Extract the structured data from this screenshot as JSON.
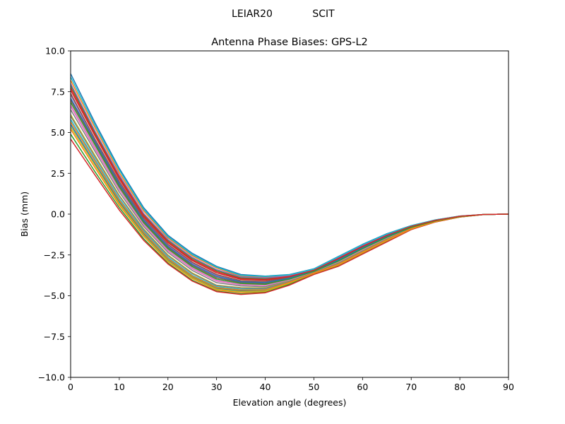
{
  "figure": {
    "suptitle_left": "LEIAR20",
    "suptitle_right": "SCIT"
  },
  "chart_data": {
    "type": "line",
    "title": "Antenna Phase Biases: GPS-L2",
    "xlabel": "Elevation angle (degrees)",
    "ylabel": "Bias (mm)",
    "xlim": [
      0,
      90
    ],
    "ylim": [
      -10,
      10
    ],
    "xticks": [
      0,
      10,
      20,
      30,
      40,
      50,
      60,
      70,
      80,
      90
    ],
    "xtick_labels": [
      "0",
      "10",
      "20",
      "30",
      "40",
      "50",
      "60",
      "70",
      "80",
      "90"
    ],
    "yticks": [
      -10,
      -7.5,
      -5,
      -2.5,
      0,
      2.5,
      5,
      7.5,
      10
    ],
    "ytick_labels": [
      "−10.0",
      "−7.5",
      "−5.0",
      "−2.5",
      "0.0",
      "2.5",
      "5.0",
      "7.5",
      "10.0"
    ],
    "grid": false,
    "legend": "none",
    "x": [
      0,
      5,
      10,
      15,
      20,
      25,
      30,
      35,
      40,
      45,
      50,
      55,
      60,
      65,
      70,
      75,
      80,
      85,
      90
    ],
    "series_colors": [
      "#1f77b4",
      "#ff7f0e",
      "#2ca02c",
      "#d62728",
      "#9467bd",
      "#8c564b",
      "#e377c2",
      "#7f7f7f",
      "#bcbd22",
      "#17becf"
    ],
    "series": [
      {
        "values": [
          8.6,
          5.6,
          2.8,
          0.4,
          -1.3,
          -2.4,
          -3.2,
          -3.7,
          -3.8,
          -3.7,
          -3.35,
          -2.6,
          -1.85,
          -1.2,
          -0.7,
          -0.35,
          -0.12,
          -0.02,
          0.0
        ]
      },
      {
        "values": [
          8.2,
          5.3,
          2.55,
          0.2,
          -1.45,
          -2.55,
          -3.3,
          -3.8,
          -3.85,
          -3.75,
          -3.4,
          -2.65,
          -1.9,
          -1.25,
          -0.72,
          -0.36,
          -0.12,
          -0.02,
          0.0
        ]
      },
      {
        "values": [
          7.9,
          5.0,
          2.35,
          0.0,
          -1.6,
          -2.7,
          -3.45,
          -3.9,
          -3.95,
          -3.8,
          -3.42,
          -2.7,
          -1.95,
          -1.28,
          -0.74,
          -0.37,
          -0.13,
          -0.02,
          0.0
        ]
      },
      {
        "values": [
          7.6,
          4.8,
          2.15,
          -0.15,
          -1.75,
          -2.85,
          -3.6,
          -4.0,
          -4.05,
          -3.85,
          -3.45,
          -2.75,
          -2.0,
          -1.32,
          -0.76,
          -0.38,
          -0.13,
          -0.02,
          0.0
        ]
      },
      {
        "values": [
          7.3,
          4.55,
          1.95,
          -0.3,
          -1.9,
          -3.0,
          -3.75,
          -4.1,
          -4.15,
          -3.9,
          -3.48,
          -2.8,
          -2.05,
          -1.36,
          -0.78,
          -0.39,
          -0.14,
          -0.02,
          0.0
        ]
      },
      {
        "values": [
          7.0,
          4.35,
          1.75,
          -0.45,
          -2.05,
          -3.15,
          -3.9,
          -4.2,
          -4.25,
          -3.95,
          -3.5,
          -2.85,
          -2.1,
          -1.4,
          -0.8,
          -0.4,
          -0.14,
          -0.02,
          0.0
        ]
      },
      {
        "values": [
          6.7,
          4.1,
          1.55,
          -0.6,
          -2.2,
          -3.3,
          -4.05,
          -4.3,
          -4.35,
          -4.0,
          -3.52,
          -2.9,
          -2.15,
          -1.44,
          -0.82,
          -0.41,
          -0.15,
          -0.02,
          0.0
        ]
      },
      {
        "values": [
          6.4,
          3.85,
          1.35,
          -0.75,
          -2.35,
          -3.45,
          -4.2,
          -4.4,
          -4.45,
          -4.05,
          -3.55,
          -2.95,
          -2.2,
          -1.48,
          -0.84,
          -0.42,
          -0.15,
          -0.02,
          0.0
        ]
      },
      {
        "values": [
          6.1,
          3.6,
          1.15,
          -0.9,
          -2.5,
          -3.6,
          -4.35,
          -4.5,
          -4.52,
          -4.1,
          -3.57,
          -3.0,
          -2.25,
          -1.52,
          -0.86,
          -0.43,
          -0.16,
          -0.02,
          0.0
        ]
      },
      {
        "values": [
          5.8,
          3.35,
          0.95,
          -1.05,
          -2.65,
          -3.75,
          -4.45,
          -4.6,
          -4.6,
          -4.15,
          -3.6,
          -3.05,
          -2.3,
          -1.56,
          -0.88,
          -0.44,
          -0.16,
          -0.02,
          0.0
        ]
      },
      {
        "values": [
          5.5,
          3.1,
          0.75,
          -1.2,
          -2.8,
          -3.85,
          -4.55,
          -4.7,
          -4.68,
          -4.2,
          -3.62,
          -3.1,
          -2.35,
          -1.6,
          -0.9,
          -0.45,
          -0.17,
          -0.02,
          0.0
        ]
      },
      {
        "values": [
          5.2,
          2.85,
          0.55,
          -1.35,
          -2.9,
          -3.95,
          -4.65,
          -4.8,
          -4.75,
          -4.25,
          -3.65,
          -3.15,
          -2.4,
          -1.64,
          -0.92,
          -0.46,
          -0.17,
          -0.02,
          0.0
        ]
      },
      {
        "values": [
          4.9,
          2.6,
          0.4,
          -1.5,
          -3.0,
          -4.05,
          -4.72,
          -4.88,
          -4.8,
          -4.3,
          -3.67,
          -3.18,
          -2.43,
          -1.67,
          -0.93,
          -0.47,
          -0.18,
          -0.02,
          0.0
        ]
      },
      {
        "values": [
          4.6,
          2.4,
          0.25,
          -1.6,
          -3.05,
          -4.1,
          -4.75,
          -4.92,
          -4.82,
          -4.35,
          -3.7,
          -3.2,
          -2.45,
          -1.7,
          -0.95,
          -0.48,
          -0.18,
          -0.02,
          0.0
        ]
      },
      {
        "values": [
          8.0,
          5.1,
          2.4,
          0.05,
          -1.55,
          -2.65,
          -3.4,
          -3.85,
          -3.9,
          -3.78,
          -3.41,
          -2.68,
          -1.93,
          -1.27,
          -0.73,
          -0.37,
          -0.13,
          -0.02,
          0.0
        ]
      },
      {
        "values": [
          7.4,
          4.6,
          2.0,
          -0.25,
          -1.85,
          -2.95,
          -3.7,
          -4.08,
          -4.12,
          -3.88,
          -3.47,
          -2.78,
          -2.03,
          -1.35,
          -0.77,
          -0.39,
          -0.14,
          -0.02,
          0.0
        ]
      },
      {
        "values": [
          6.6,
          4.0,
          1.5,
          -0.65,
          -2.25,
          -3.35,
          -4.1,
          -4.33,
          -4.38,
          -4.02,
          -3.53,
          -2.92,
          -2.17,
          -1.45,
          -0.83,
          -0.42,
          -0.15,
          -0.02,
          0.0
        ]
      },
      {
        "values": [
          6.0,
          3.5,
          1.1,
          -0.95,
          -2.55,
          -3.65,
          -4.38,
          -4.53,
          -4.55,
          -4.12,
          -3.58,
          -3.02,
          -2.27,
          -1.54,
          -0.87,
          -0.44,
          -0.16,
          -0.02,
          0.0
        ]
      },
      {
        "values": [
          5.35,
          3.0,
          0.65,
          -1.28,
          -2.85,
          -3.9,
          -4.6,
          -4.75,
          -4.72,
          -4.22,
          -3.63,
          -3.12,
          -2.37,
          -1.62,
          -0.91,
          -0.46,
          -0.17,
          -0.02,
          0.0
        ]
      },
      {
        "values": [
          8.4,
          5.45,
          2.7,
          0.3,
          -1.38,
          -2.48,
          -3.25,
          -3.75,
          -3.82,
          -3.72,
          -3.37,
          -2.62,
          -1.87,
          -1.22,
          -0.71,
          -0.35,
          -0.12,
          -0.02,
          0.0
        ]
      },
      {
        "values": [
          7.1,
          4.45,
          1.85,
          -0.38,
          -1.98,
          -3.08,
          -3.82,
          -4.15,
          -4.2,
          -3.92,
          -3.49,
          -2.82,
          -2.07,
          -1.38,
          -0.79,
          -0.4,
          -0.14,
          -0.02,
          0.0
        ]
      },
      {
        "values": [
          5.65,
          3.25,
          0.85,
          -1.12,
          -2.72,
          -3.8,
          -4.5,
          -4.65,
          -4.64,
          -4.18,
          -3.61,
          -3.08,
          -2.33,
          -1.58,
          -0.89,
          -0.45,
          -0.17,
          -0.02,
          0.0
        ]
      },
      {
        "values": [
          6.85,
          4.25,
          1.65,
          -0.52,
          -2.12,
          -3.22,
          -3.98,
          -4.25,
          -4.3,
          -3.98,
          -3.51,
          -2.88,
          -2.12,
          -1.42,
          -0.81,
          -0.41,
          -0.15,
          -0.02,
          0.0
        ]
      },
      {
        "values": [
          7.75,
          4.9,
          2.25,
          -0.08,
          -1.68,
          -2.78,
          -3.52,
          -3.95,
          -4.0,
          -3.82,
          -3.44,
          -2.72,
          -1.97,
          -1.3,
          -0.75,
          -0.38,
          -0.13,
          -0.02,
          0.0
        ]
      }
    ]
  }
}
